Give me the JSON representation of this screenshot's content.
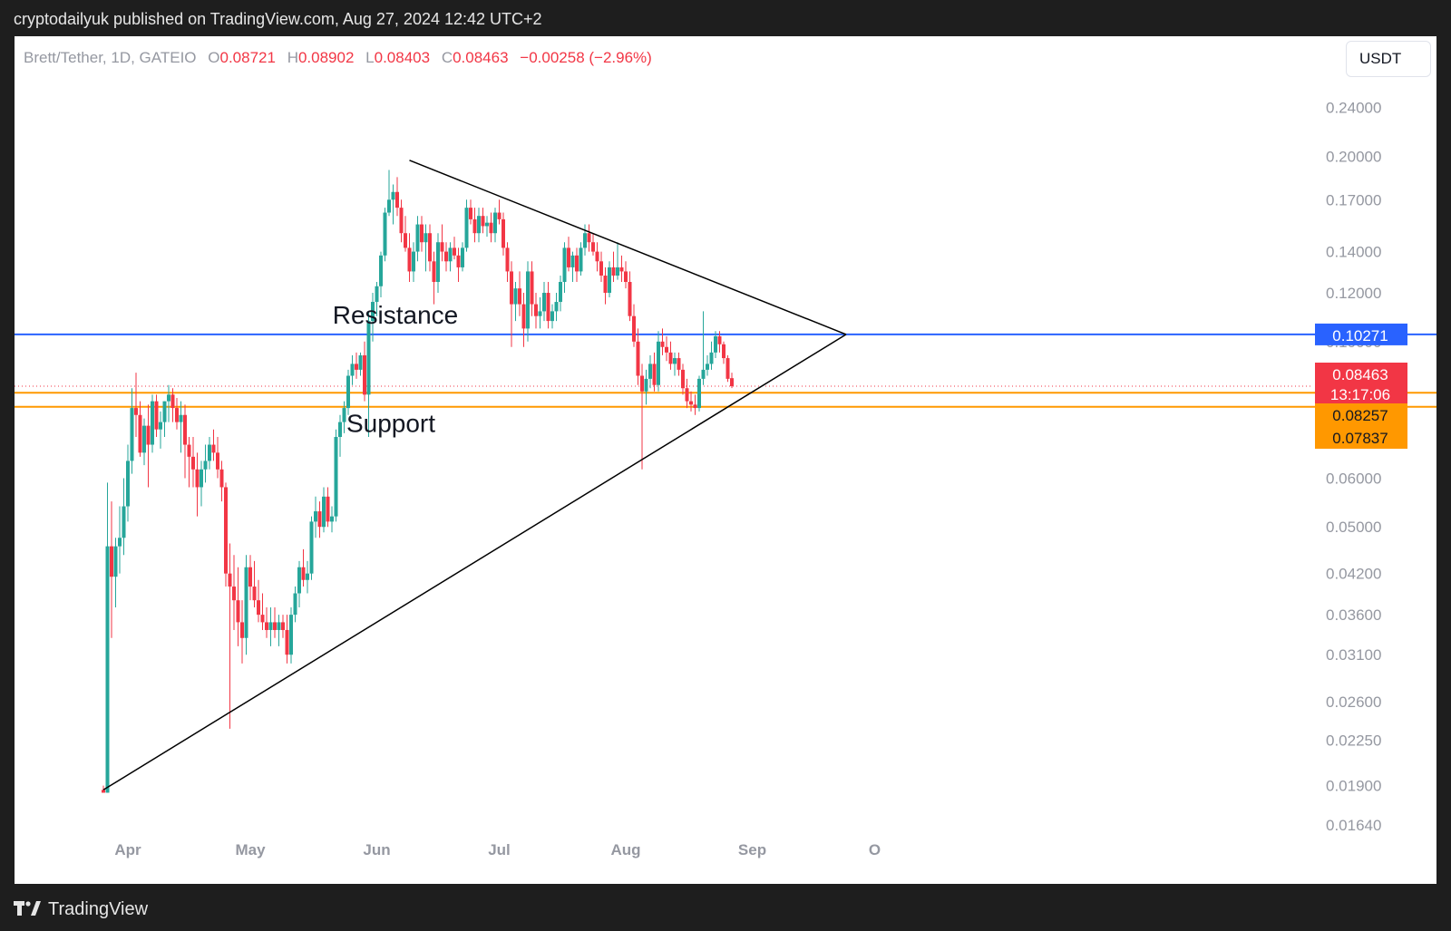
{
  "header": {
    "publisher_text": "cryptodailyuk published on TradingView.com, Aug 27, 2024 12:42 UTC+2"
  },
  "legend": {
    "symbol": "Brett/Tether, 1D, GATEIO",
    "open_label": "O",
    "open": "0.08721",
    "high_label": "H",
    "high": "0.08902",
    "low_label": "L",
    "low": "0.08403",
    "close_label": "C",
    "close": "0.08463",
    "change": "−0.00258 (−2.96%)"
  },
  "currency_button": {
    "label": "USDT"
  },
  "footer": {
    "brand": "TradingView",
    "logo_icon": "tradingview-logo-icon"
  },
  "colors": {
    "up": "#26a69a",
    "down": "#f23645",
    "resistance": "#2962ff",
    "support": "#ff9800",
    "trendline": "#000000",
    "axis_text": "#9598a1"
  },
  "chart_data": {
    "type": "candlestick",
    "pair": "Brett/Tether",
    "interval": "1D",
    "exchange": "GATEIO",
    "y_scale": "log",
    "ylim": [
      0.0164,
      0.26
    ],
    "y_ticks": [
      "0.24000",
      "0.20000",
      "0.17000",
      "0.14000",
      "0.12000",
      "0.10000",
      "0.06000",
      "0.05000",
      "0.04200",
      "0.03600",
      "0.03100",
      "0.02600",
      "0.02250",
      "0.01900",
      "0.01640"
    ],
    "x_ticks": [
      "Apr",
      "May",
      "Jun",
      "Jul",
      "Aug",
      "Sep",
      "O"
    ],
    "price_labels": [
      {
        "label": "0.10271",
        "value": 0.10271,
        "color": "#2962ff"
      },
      {
        "label": "0.08463",
        "value": 0.08463,
        "color": "#f23645",
        "sub": "13:17:06"
      },
      {
        "label": "0.08257",
        "value": 0.08257,
        "color": "#ff9800"
      },
      {
        "label": "0.07837",
        "value": 0.07837,
        "color": "#ff9800"
      }
    ],
    "levels": {
      "resistance": {
        "value": 0.10271,
        "text": "Resistance"
      },
      "support_upper": {
        "value": 0.08257
      },
      "support_lower": {
        "value": 0.07837,
        "text": "Support"
      }
    },
    "trendlines": [
      {
        "name": "ascending",
        "from": [
          "2024-03-26",
          0.0187
        ],
        "to": [
          "2024-09-24",
          0.10271
        ]
      },
      {
        "name": "descending",
        "from": [
          "2024-06-09",
          0.197
        ],
        "to": [
          "2024-09-24",
          0.10271
        ]
      }
    ],
    "candles": [
      [
        "2024-03-26",
        0.0187,
        0.019,
        0.0185,
        0.0185
      ],
      [
        "2024-03-27",
        0.0185,
        0.059,
        0.0185,
        0.0465
      ],
      [
        "2024-03-28",
        0.0465,
        0.055,
        0.033,
        0.0415
      ],
      [
        "2024-03-29",
        0.0415,
        0.048,
        0.037,
        0.0465
      ],
      [
        "2024-03-30",
        0.0465,
        0.054,
        0.042,
        0.048
      ],
      [
        "2024-03-31",
        0.048,
        0.06,
        0.045,
        0.054
      ],
      [
        "2024-04-01",
        0.054,
        0.068,
        0.051,
        0.064
      ],
      [
        "2024-04-02",
        0.064,
        0.084,
        0.061,
        0.078
      ],
      [
        "2024-04-03",
        0.078,
        0.089,
        0.07,
        0.076
      ],
      [
        "2024-04-04",
        0.076,
        0.08,
        0.065,
        0.066
      ],
      [
        "2024-04-05",
        0.066,
        0.075,
        0.063,
        0.073
      ],
      [
        "2024-04-06",
        0.073,
        0.079,
        0.058,
        0.068
      ],
      [
        "2024-04-07",
        0.068,
        0.082,
        0.066,
        0.08
      ],
      [
        "2024-04-08",
        0.08,
        0.082,
        0.07,
        0.072
      ],
      [
        "2024-04-09",
        0.072,
        0.077,
        0.067,
        0.074
      ],
      [
        "2024-04-10",
        0.074,
        0.08,
        0.07,
        0.08
      ],
      [
        "2024-04-11",
        0.08,
        0.085,
        0.074,
        0.082
      ],
      [
        "2024-04-12",
        0.082,
        0.084,
        0.074,
        0.078
      ],
      [
        "2024-04-13",
        0.078,
        0.081,
        0.072,
        0.074
      ],
      [
        "2024-04-14",
        0.074,
        0.08,
        0.066,
        0.076
      ],
      [
        "2024-04-15",
        0.076,
        0.079,
        0.06,
        0.068
      ],
      [
        "2024-04-16",
        0.068,
        0.07,
        0.058,
        0.065
      ],
      [
        "2024-04-17",
        0.065,
        0.07,
        0.058,
        0.062
      ],
      [
        "2024-04-18",
        0.062,
        0.066,
        0.052,
        0.058
      ],
      [
        "2024-04-19",
        0.058,
        0.064,
        0.054,
        0.062
      ],
      [
        "2024-04-20",
        0.062,
        0.068,
        0.059,
        0.064
      ],
      [
        "2024-04-21",
        0.064,
        0.07,
        0.062,
        0.068
      ],
      [
        "2024-04-22",
        0.068,
        0.072,
        0.064,
        0.066
      ],
      [
        "2024-04-23",
        0.066,
        0.07,
        0.06,
        0.062
      ],
      [
        "2024-04-24",
        0.062,
        0.064,
        0.055,
        0.058
      ],
      [
        "2024-04-25",
        0.058,
        0.059,
        0.04,
        0.042
      ],
      [
        "2024-04-26",
        0.042,
        0.047,
        0.0235,
        0.04
      ],
      [
        "2024-04-27",
        0.04,
        0.045,
        0.034,
        0.038
      ],
      [
        "2024-04-28",
        0.038,
        0.043,
        0.032,
        0.035
      ],
      [
        "2024-04-29",
        0.035,
        0.038,
        0.03,
        0.033
      ],
      [
        "2024-04-30",
        0.033,
        0.045,
        0.031,
        0.043
      ],
      [
        "2024-05-01",
        0.043,
        0.045,
        0.038,
        0.04
      ],
      [
        "2024-05-02",
        0.04,
        0.044,
        0.037,
        0.038
      ],
      [
        "2024-05-03",
        0.038,
        0.041,
        0.035,
        0.036
      ],
      [
        "2024-05-04",
        0.036,
        0.039,
        0.034,
        0.035
      ],
      [
        "2024-05-05",
        0.035,
        0.037,
        0.033,
        0.034
      ],
      [
        "2024-05-06",
        0.034,
        0.037,
        0.032,
        0.035
      ],
      [
        "2024-05-07",
        0.035,
        0.037,
        0.033,
        0.034
      ],
      [
        "2024-05-08",
        0.034,
        0.036,
        0.032,
        0.035
      ],
      [
        "2024-05-09",
        0.035,
        0.036,
        0.033,
        0.034
      ],
      [
        "2024-05-10",
        0.034,
        0.036,
        0.03,
        0.031
      ],
      [
        "2024-05-11",
        0.031,
        0.037,
        0.03,
        0.036
      ],
      [
        "2024-05-12",
        0.036,
        0.04,
        0.035,
        0.039
      ],
      [
        "2024-05-13",
        0.039,
        0.044,
        0.037,
        0.043
      ],
      [
        "2024-05-14",
        0.043,
        0.046,
        0.04,
        0.041
      ],
      [
        "2024-05-15",
        0.041,
        0.044,
        0.039,
        0.042
      ],
      [
        "2024-05-16",
        0.042,
        0.052,
        0.041,
        0.051
      ],
      [
        "2024-05-17",
        0.051,
        0.056,
        0.048,
        0.053
      ],
      [
        "2024-05-18",
        0.053,
        0.055,
        0.048,
        0.05
      ],
      [
        "2024-05-19",
        0.05,
        0.058,
        0.049,
        0.056
      ],
      [
        "2024-05-20",
        0.056,
        0.058,
        0.05,
        0.051
      ],
      [
        "2024-05-21",
        0.051,
        0.054,
        0.049,
        0.052
      ],
      [
        "2024-05-22",
        0.052,
        0.072,
        0.051,
        0.07
      ],
      [
        "2024-05-23",
        0.07,
        0.076,
        0.065,
        0.074
      ],
      [
        "2024-05-24",
        0.074,
        0.08,
        0.071,
        0.078
      ],
      [
        "2024-05-25",
        0.078,
        0.09,
        0.076,
        0.088
      ],
      [
        "2024-05-26",
        0.088,
        0.095,
        0.085,
        0.092
      ],
      [
        "2024-05-27",
        0.092,
        0.096,
        0.087,
        0.09
      ],
      [
        "2024-05-28",
        0.09,
        0.096,
        0.088,
        0.095
      ],
      [
        "2024-05-29",
        0.095,
        0.1,
        0.08,
        0.082
      ],
      [
        "2024-05-30",
        0.082,
        0.112,
        0.07,
        0.108
      ],
      [
        "2024-05-31",
        0.108,
        0.12,
        0.1,
        0.116
      ],
      [
        "2024-06-01",
        0.116,
        0.125,
        0.11,
        0.123
      ],
      [
        "2024-06-02",
        0.123,
        0.14,
        0.118,
        0.138
      ],
      [
        "2024-06-03",
        0.138,
        0.165,
        0.135,
        0.162
      ],
      [
        "2024-06-04",
        0.162,
        0.19,
        0.16,
        0.17
      ],
      [
        "2024-06-05",
        0.17,
        0.18,
        0.155,
        0.175
      ],
      [
        "2024-06-06",
        0.175,
        0.185,
        0.16,
        0.165
      ],
      [
        "2024-06-07",
        0.165,
        0.17,
        0.145,
        0.15
      ],
      [
        "2024-06-08",
        0.15,
        0.16,
        0.14,
        0.142
      ],
      [
        "2024-06-09",
        0.142,
        0.15,
        0.125,
        0.13
      ],
      [
        "2024-06-10",
        0.13,
        0.145,
        0.125,
        0.14
      ],
      [
        "2024-06-11",
        0.14,
        0.16,
        0.135,
        0.155
      ],
      [
        "2024-06-12",
        0.155,
        0.16,
        0.14,
        0.145
      ],
      [
        "2024-06-13",
        0.145,
        0.155,
        0.13,
        0.15
      ],
      [
        "2024-06-14",
        0.15,
        0.155,
        0.13,
        0.135
      ],
      [
        "2024-06-15",
        0.135,
        0.14,
        0.115,
        0.125
      ],
      [
        "2024-06-16",
        0.125,
        0.15,
        0.12,
        0.145
      ],
      [
        "2024-06-17",
        0.145,
        0.155,
        0.135,
        0.14
      ],
      [
        "2024-06-18",
        0.14,
        0.145,
        0.13,
        0.135
      ],
      [
        "2024-06-19",
        0.135,
        0.145,
        0.13,
        0.142
      ],
      [
        "2024-06-20",
        0.142,
        0.148,
        0.136,
        0.138
      ],
      [
        "2024-06-21",
        0.138,
        0.142,
        0.125,
        0.132
      ],
      [
        "2024-06-22",
        0.132,
        0.145,
        0.13,
        0.142
      ],
      [
        "2024-06-23",
        0.142,
        0.17,
        0.14,
        0.165
      ],
      [
        "2024-06-24",
        0.165,
        0.17,
        0.155,
        0.158
      ],
      [
        "2024-06-25",
        0.158,
        0.165,
        0.145,
        0.15
      ],
      [
        "2024-06-26",
        0.15,
        0.165,
        0.145,
        0.16
      ],
      [
        "2024-06-27",
        0.16,
        0.165,
        0.15,
        0.154
      ],
      [
        "2024-06-28",
        0.154,
        0.16,
        0.148,
        0.156
      ],
      [
        "2024-06-29",
        0.156,
        0.162,
        0.145,
        0.15
      ],
      [
        "2024-06-30",
        0.15,
        0.165,
        0.145,
        0.162
      ],
      [
        "2024-07-01",
        0.162,
        0.17,
        0.155,
        0.158
      ],
      [
        "2024-07-02",
        0.158,
        0.162,
        0.138,
        0.142
      ],
      [
        "2024-07-03",
        0.142,
        0.145,
        0.125,
        0.13
      ],
      [
        "2024-07-04",
        0.13,
        0.135,
        0.098,
        0.115
      ],
      [
        "2024-07-05",
        0.115,
        0.125,
        0.108,
        0.122
      ],
      [
        "2024-07-06",
        0.122,
        0.13,
        0.11,
        0.115
      ],
      [
        "2024-07-07",
        0.115,
        0.12,
        0.098,
        0.105
      ],
      [
        "2024-07-08",
        0.105,
        0.135,
        0.1,
        0.13
      ],
      [
        "2024-07-09",
        0.13,
        0.135,
        0.11,
        0.115
      ],
      [
        "2024-07-10",
        0.115,
        0.12,
        0.105,
        0.11
      ],
      [
        "2024-07-11",
        0.11,
        0.118,
        0.105,
        0.112
      ],
      [
        "2024-07-12",
        0.112,
        0.125,
        0.108,
        0.12
      ],
      [
        "2024-07-13",
        0.12,
        0.125,
        0.105,
        0.108
      ],
      [
        "2024-07-14",
        0.108,
        0.115,
        0.105,
        0.112
      ],
      [
        "2024-07-15",
        0.112,
        0.12,
        0.108,
        0.116
      ],
      [
        "2024-07-16",
        0.116,
        0.128,
        0.112,
        0.125
      ],
      [
        "2024-07-17",
        0.125,
        0.145,
        0.12,
        0.142
      ],
      [
        "2024-07-18",
        0.142,
        0.148,
        0.13,
        0.132
      ],
      [
        "2024-07-19",
        0.132,
        0.14,
        0.125,
        0.138
      ],
      [
        "2024-07-20",
        0.138,
        0.142,
        0.125,
        0.13
      ],
      [
        "2024-07-21",
        0.13,
        0.145,
        0.128,
        0.142
      ],
      [
        "2024-07-22",
        0.142,
        0.155,
        0.138,
        0.15
      ],
      [
        "2024-07-23",
        0.15,
        0.155,
        0.14,
        0.145
      ],
      [
        "2024-07-24",
        0.145,
        0.15,
        0.138,
        0.14
      ],
      [
        "2024-07-25",
        0.14,
        0.145,
        0.13,
        0.135
      ],
      [
        "2024-07-26",
        0.135,
        0.14,
        0.125,
        0.128
      ],
      [
        "2024-07-27",
        0.128,
        0.132,
        0.115,
        0.12
      ],
      [
        "2024-07-28",
        0.12,
        0.135,
        0.118,
        0.132
      ],
      [
        "2024-07-29",
        0.132,
        0.14,
        0.125,
        0.128
      ],
      [
        "2024-07-30",
        0.128,
        0.145,
        0.126,
        0.132
      ],
      [
        "2024-07-31",
        0.132,
        0.138,
        0.125,
        0.13
      ],
      [
        "2024-08-01",
        0.13,
        0.135,
        0.122,
        0.125
      ],
      [
        "2024-08-02",
        0.125,
        0.13,
        0.108,
        0.11
      ],
      [
        "2024-08-03",
        0.11,
        0.115,
        0.098,
        0.1
      ],
      [
        "2024-08-04",
        0.1,
        0.105,
        0.085,
        0.088
      ],
      [
        "2024-08-05",
        0.088,
        0.092,
        0.062,
        0.083
      ],
      [
        "2024-08-06",
        0.083,
        0.09,
        0.079,
        0.087
      ],
      [
        "2024-08-07",
        0.087,
        0.095,
        0.084,
        0.092
      ],
      [
        "2024-08-08",
        0.092,
        0.096,
        0.083,
        0.085
      ],
      [
        "2024-08-09",
        0.085,
        0.104,
        0.083,
        0.1
      ],
      [
        "2024-08-10",
        0.1,
        0.105,
        0.095,
        0.098
      ],
      [
        "2024-08-11",
        0.098,
        0.102,
        0.093,
        0.096
      ],
      [
        "2024-08-12",
        0.096,
        0.1,
        0.09,
        0.092
      ],
      [
        "2024-08-13",
        0.092,
        0.096,
        0.088,
        0.094
      ],
      [
        "2024-08-14",
        0.094,
        0.096,
        0.088,
        0.09
      ],
      [
        "2024-08-15",
        0.09,
        0.092,
        0.082,
        0.084
      ],
      [
        "2024-08-16",
        0.084,
        0.087,
        0.078,
        0.08
      ],
      [
        "2024-08-17",
        0.08,
        0.083,
        0.077,
        0.079
      ],
      [
        "2024-08-18",
        0.079,
        0.082,
        0.076,
        0.078
      ],
      [
        "2024-08-19",
        0.078,
        0.088,
        0.077,
        0.087
      ],
      [
        "2024-08-20",
        0.087,
        0.112,
        0.085,
        0.09
      ],
      [
        "2024-08-21",
        0.09,
        0.095,
        0.088,
        0.092
      ],
      [
        "2024-08-22",
        0.092,
        0.1,
        0.09,
        0.096
      ],
      [
        "2024-08-23",
        0.096,
        0.104,
        0.094,
        0.102
      ],
      [
        "2024-08-24",
        0.102,
        0.104,
        0.096,
        0.099
      ],
      [
        "2024-08-25",
        0.099,
        0.1,
        0.092,
        0.094
      ],
      [
        "2024-08-26",
        0.094,
        0.095,
        0.086,
        0.087
      ],
      [
        "2024-08-27",
        0.08721,
        0.08902,
        0.08403,
        0.08463
      ]
    ]
  }
}
